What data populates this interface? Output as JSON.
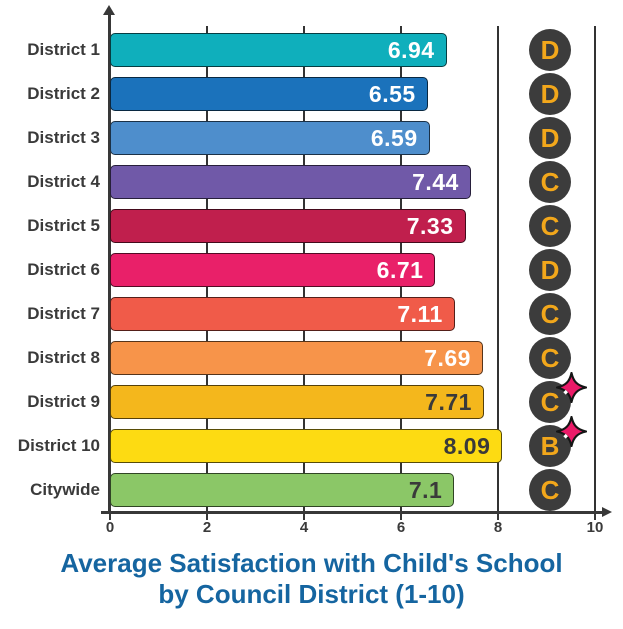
{
  "title": {
    "line1": "Average Satisfaction with Child's School",
    "line2": "by Council District (1-10)"
  },
  "axis": {
    "min": 0,
    "max": 10,
    "tick_values": [
      0,
      2,
      4,
      6,
      8,
      10
    ],
    "tick_labels": [
      "0",
      "2",
      "4",
      "6",
      "8",
      "10"
    ],
    "gridline_values": [
      2,
      4,
      6,
      8,
      10
    ]
  },
  "colors": {
    "axis": "#383838",
    "gridline": "#333333",
    "district_label": "#3a3a3a",
    "badge_background": "#3C3C3C",
    "badge_letter": "#F2A71B",
    "sparkle_star": "#EB1A68",
    "title_text": "#1565A0"
  },
  "icons": {
    "sparkle": "four-point-star-icon",
    "y_axis_arrow": "up-arrow-icon",
    "x_axis_arrow": "right-arrow-icon"
  },
  "chart_data": {
    "type": "bar",
    "orientation": "horizontal",
    "title": "Average Satisfaction with Child's School by Council District (1-10)",
    "xlabel": "",
    "ylabel": "",
    "xlim": [
      0,
      10
    ],
    "x_ticks": [
      0,
      2,
      4,
      6,
      8,
      10
    ],
    "grid": "vertical lines at 2,4,6,8,10",
    "categories": [
      "District 1",
      "District 2",
      "District 3",
      "District 4",
      "District 5",
      "District 6",
      "District 7",
      "District 8",
      "District 9",
      "District 10",
      "Citywide"
    ],
    "values": [
      6.94,
      6.55,
      6.59,
      7.44,
      7.33,
      6.71,
      7.11,
      7.69,
      7.71,
      8.09,
      7.1
    ],
    "value_labels": [
      "6.94",
      "6.55",
      "6.59",
      "7.44",
      "7.33",
      "6.71",
      "7.11",
      "7.69",
      "7.71",
      "8.09",
      "7.1"
    ],
    "grades": [
      "D",
      "D",
      "D",
      "C",
      "C",
      "D",
      "C",
      "C",
      "C",
      "B",
      "C"
    ],
    "sparkles": [
      false,
      false,
      false,
      false,
      false,
      false,
      false,
      false,
      true,
      true,
      false
    ],
    "bar_colors": [
      "#0FAFBC",
      "#1B72BB",
      "#4E8ECC",
      "#7059A8",
      "#C01F4D",
      "#E92069",
      "#F05B49",
      "#F7944A",
      "#F4B71C",
      "#FDDB12",
      "#8BC767"
    ],
    "value_label_colors": [
      "#FFFFFF",
      "#FFFFFF",
      "#FFFFFF",
      "#FFFFFF",
      "#FFFFFF",
      "#FFFFFF",
      "#FFFFFF",
      "#FFFFFF",
      "#3A3A3A",
      "#3A3A3A",
      "#3A3A3A"
    ]
  }
}
